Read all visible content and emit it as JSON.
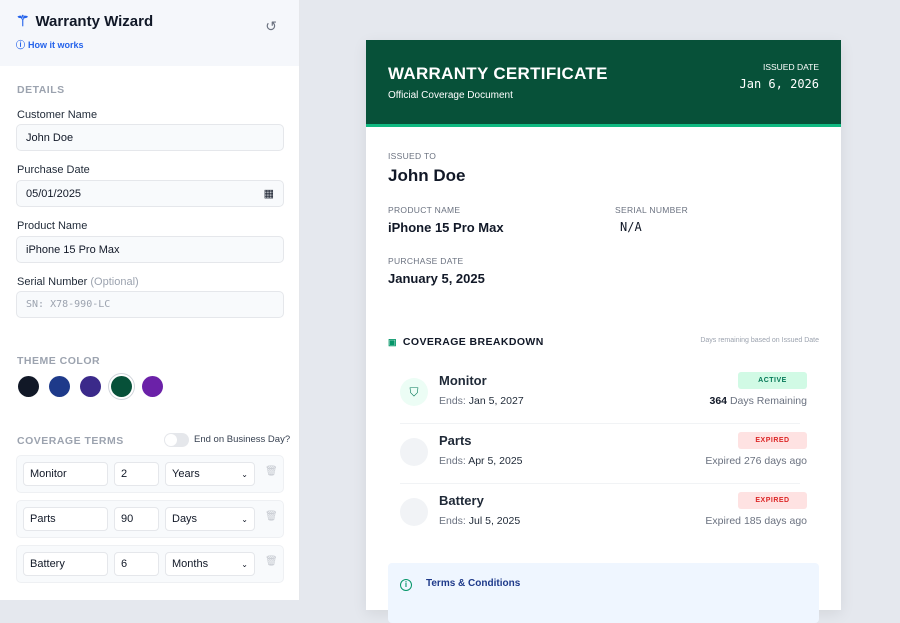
{
  "app": {
    "title": "Warranty Wizard",
    "how_it_works": "How it works"
  },
  "form": {
    "details_heading": "DETAILS",
    "customer_label": "Customer Name",
    "customer_value": "John Doe",
    "purchase_label": "Purchase Date",
    "purchase_value": "05/01/2025",
    "product_label": "Product Name",
    "product_value": "iPhone 15 Pro Max",
    "serial_label": "Serial Number",
    "serial_optional": "(Optional)",
    "serial_placeholder": "SN: X78-990-LC",
    "theme_heading": "THEME COLOR",
    "theme_colors": [
      "#111827",
      "#1e3a8a",
      "#3b2a8a",
      "#075139",
      "#6b21a8"
    ],
    "selected_theme": "#075139",
    "coverage_heading": "COVERAGE TERMS",
    "business_day_label": "End on Business Day?",
    "business_day_on": false,
    "terms": [
      {
        "name": "Monitor",
        "qty": "2",
        "unit": "Years"
      },
      {
        "name": "Parts",
        "qty": "90",
        "unit": "Days"
      },
      {
        "name": "Battery",
        "qty": "6",
        "unit": "Months"
      }
    ]
  },
  "certificate": {
    "title": "WARRANTY CERTIFICATE",
    "subtitle": "Official Coverage Document",
    "issued_date_label": "ISSUED DATE",
    "issued_date": "Jan 6, 2026",
    "issued_to_label": "ISSUED TO",
    "issued_to": "John Doe",
    "product_label": "PRODUCT NAME",
    "product": "iPhone 15 Pro Max",
    "serial_label": "SERIAL NUMBER",
    "serial": "N/A",
    "purchase_label": "PURCHASE DATE",
    "purchase": "January 5, 2025",
    "coverage_heading": "COVERAGE BREAKDOWN",
    "coverage_note": "Days remaining based on Issued Date",
    "ends_label": "Ends:",
    "items": [
      {
        "name": "Monitor",
        "ends": "Jan 5, 2027",
        "status": "ACTIVE",
        "days": "364",
        "remaining": "Days Remaining"
      },
      {
        "name": "Parts",
        "ends": "Apr 5, 2025",
        "status": "EXPIRED",
        "remaining": "Expired 276 days ago"
      },
      {
        "name": "Battery",
        "ends": "Jul 5, 2025",
        "status": "EXPIRED",
        "remaining": "Expired 185 days ago"
      }
    ],
    "terms_title": "Terms & Conditions"
  },
  "colors": {
    "brand": "#075139",
    "accent": "#10b981",
    "active": "#047857",
    "expired": "#dc2626",
    "link": "#2563eb"
  }
}
